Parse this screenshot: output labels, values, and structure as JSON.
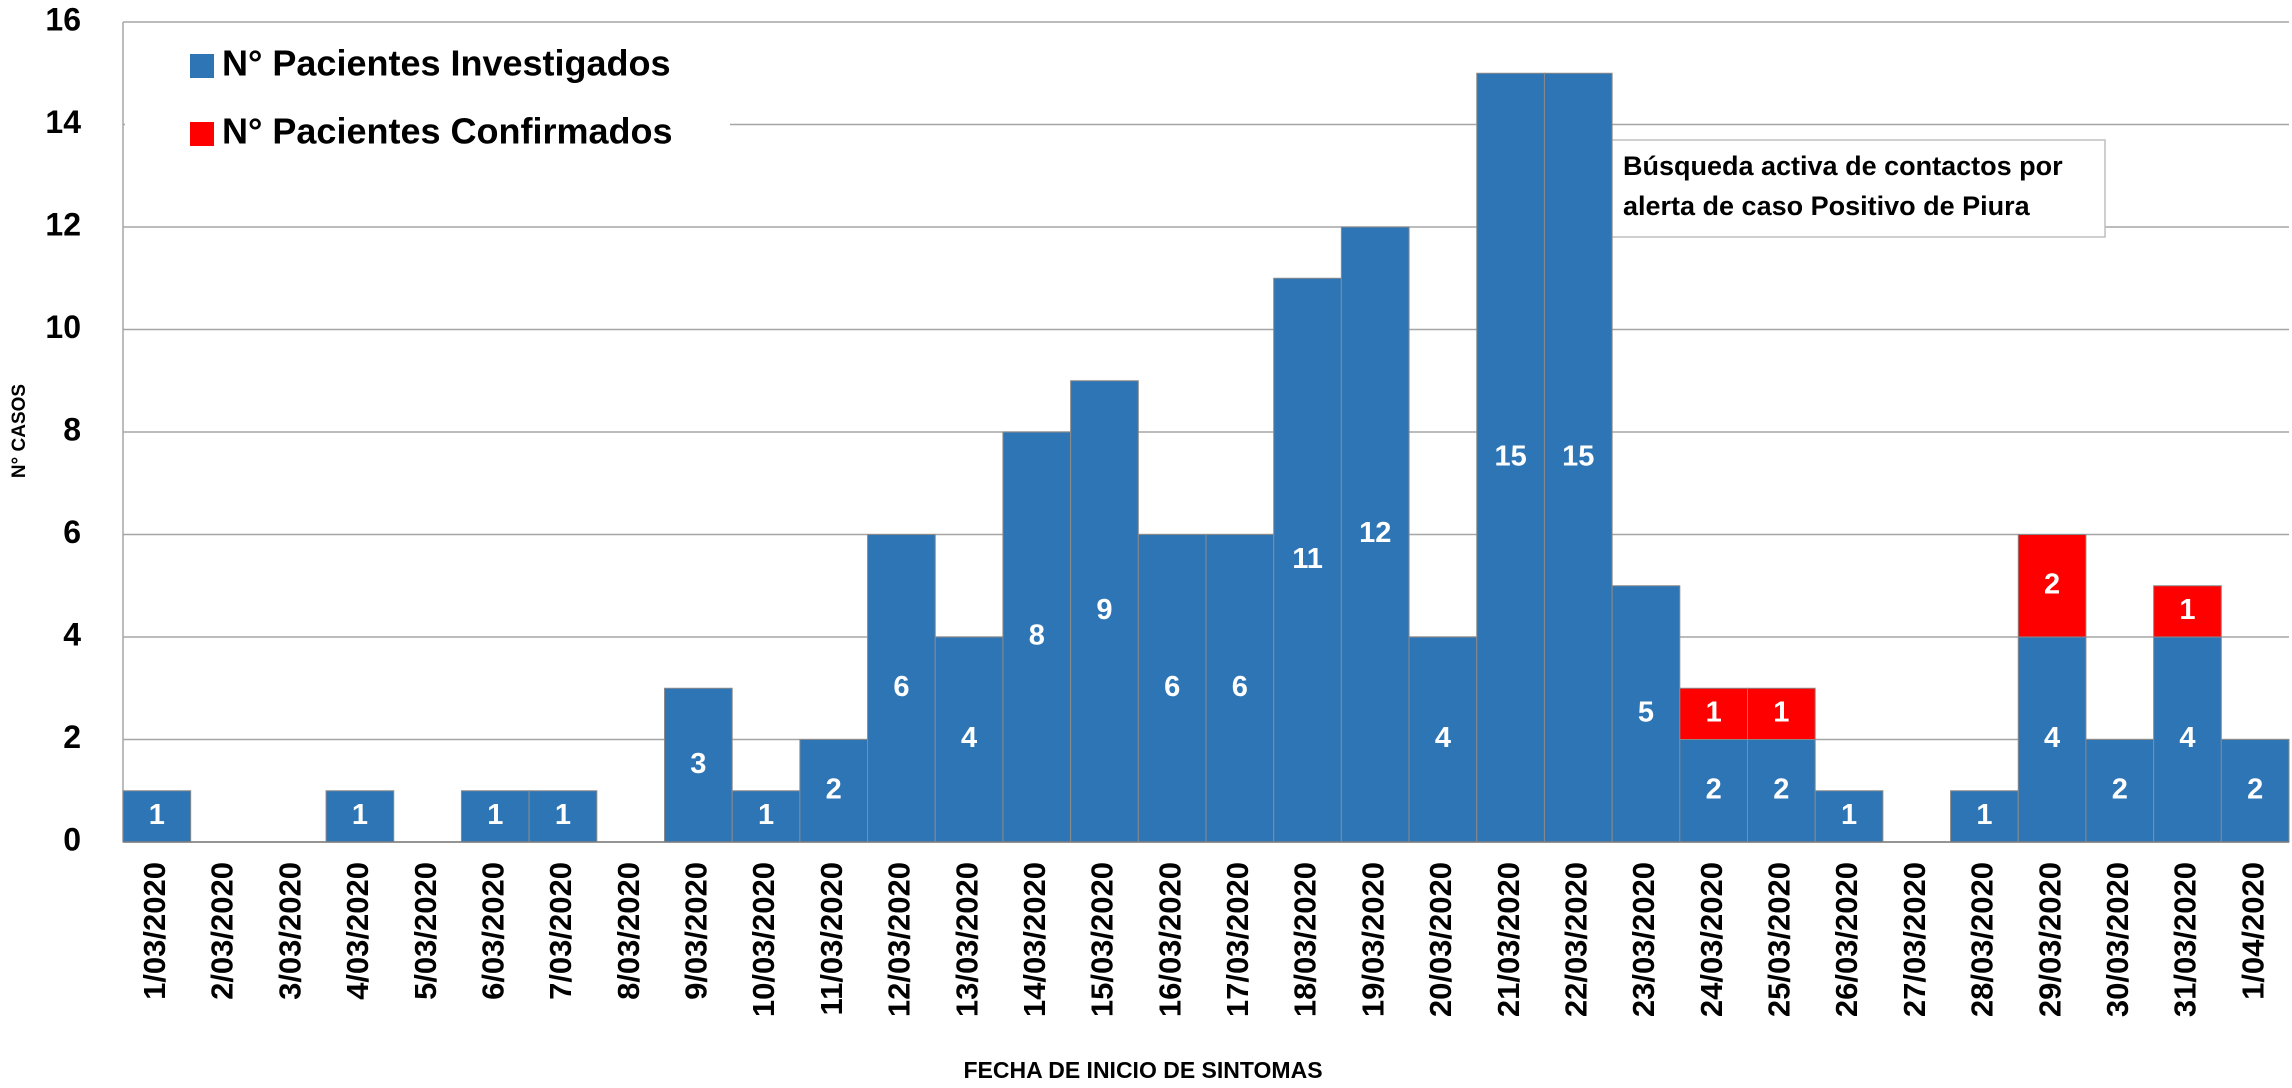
{
  "chart_data": {
    "type": "bar",
    "stacked": true,
    "y_label": "N° CASOS",
    "x_label": "FECHA DE INICIO DE SINTOMAS",
    "categories": [
      "1/03/2020",
      "2/03/2020",
      "3/03/2020",
      "4/03/2020",
      "5/03/2020",
      "6/03/2020",
      "7/03/2020",
      "8/03/2020",
      "9/03/2020",
      "10/03/2020",
      "11/03/2020",
      "12/03/2020",
      "13/03/2020",
      "14/03/2020",
      "15/03/2020",
      "16/03/2020",
      "17/03/2020",
      "18/03/2020",
      "19/03/2020",
      "20/03/2020",
      "21/03/2020",
      "22/03/2020",
      "23/03/2020",
      "24/03/2020",
      "25/03/2020",
      "26/03/2020",
      "27/03/2020",
      "28/03/2020",
      "29/03/2020",
      "30/03/2020",
      "31/03/2020",
      "1/04/2020"
    ],
    "series": [
      {
        "name": "N° Pacientes Investigados",
        "color": "#2e75b6",
        "values": [
          1,
          0,
          0,
          1,
          0,
          1,
          1,
          0,
          3,
          1,
          2,
          6,
          4,
          8,
          9,
          6,
          6,
          11,
          12,
          4,
          15,
          15,
          5,
          2,
          2,
          1,
          0,
          1,
          4,
          2,
          4,
          2
        ]
      },
      {
        "name": "N° Pacientes Confirmados",
        "color": "#ff0000",
        "values": [
          0,
          0,
          0,
          0,
          0,
          0,
          0,
          0,
          0,
          0,
          0,
          0,
          0,
          0,
          0,
          0,
          0,
          0,
          0,
          0,
          0,
          0,
          0,
          1,
          1,
          0,
          0,
          0,
          2,
          0,
          1,
          0
        ]
      }
    ],
    "ylim": [
      0,
      16
    ],
    "yticks": [
      0,
      2,
      4,
      6,
      8,
      10,
      12,
      14,
      16
    ],
    "grid": true,
    "legend": "upper left",
    "annotation": [
      "Búsqueda activa de contactos por",
      "alerta de caso Positivo de Piura"
    ]
  }
}
